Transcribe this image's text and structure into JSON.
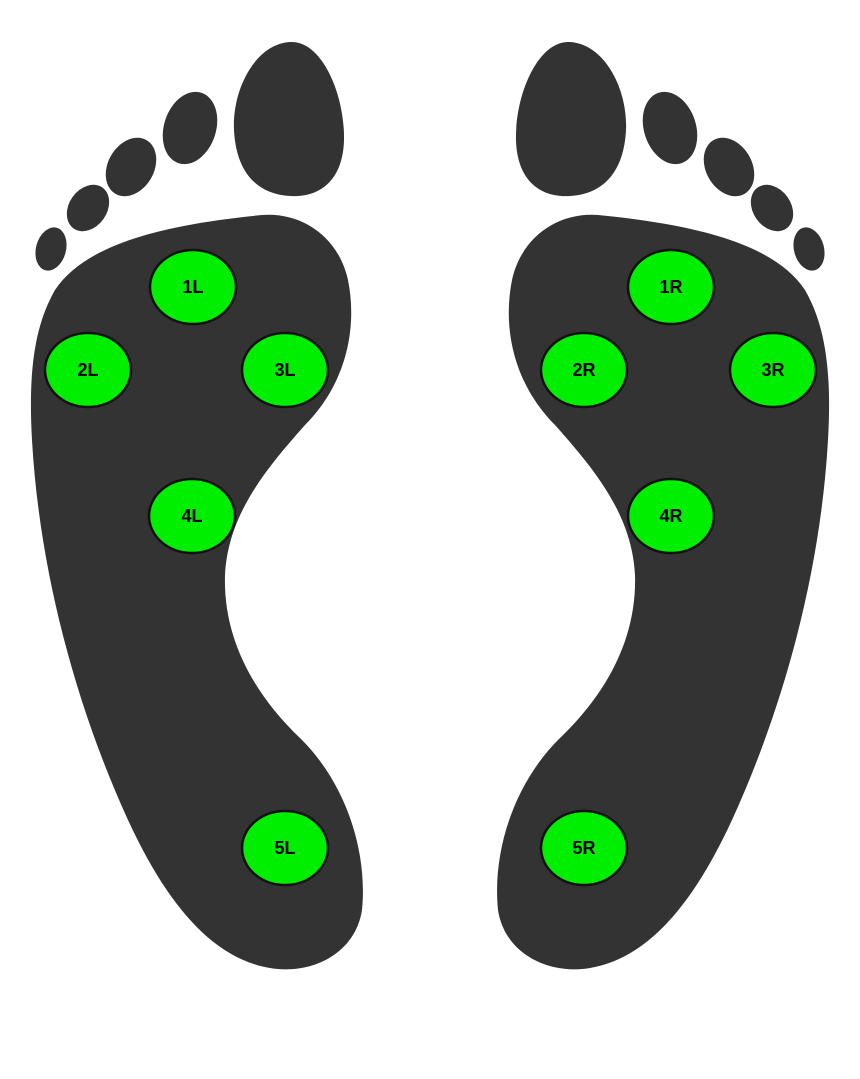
{
  "colors": {
    "foot": "#333333",
    "sensor_active": "#00ee00",
    "sensor_stroke": "#111111",
    "background": "#ffffff"
  },
  "left_foot": {
    "sensors": [
      {
        "id": "1L",
        "label": "1L"
      },
      {
        "id": "2L",
        "label": "2L"
      },
      {
        "id": "3L",
        "label": "3L"
      },
      {
        "id": "4L",
        "label": "4L"
      },
      {
        "id": "5L",
        "label": "5L"
      }
    ]
  },
  "right_foot": {
    "sensors": [
      {
        "id": "1R",
        "label": "1R"
      },
      {
        "id": "2R",
        "label": "2R"
      },
      {
        "id": "3R",
        "label": "3R"
      },
      {
        "id": "4R",
        "label": "4R"
      },
      {
        "id": "5R",
        "label": "5R"
      }
    ]
  }
}
